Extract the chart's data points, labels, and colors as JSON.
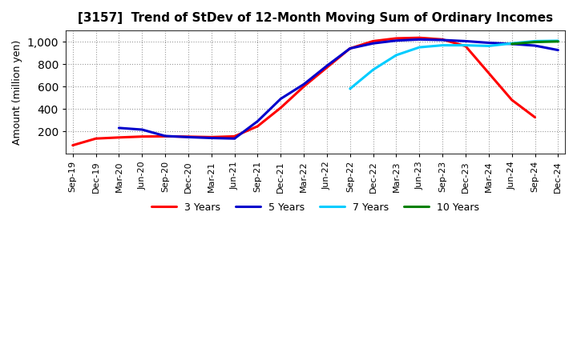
{
  "title": "[3157]  Trend of StDev of 12-Month Moving Sum of Ordinary Incomes",
  "ylabel": "Amount (million yen)",
  "x_labels": [
    "Sep-19",
    "Dec-19",
    "Mar-20",
    "Jun-20",
    "Sep-20",
    "Dec-20",
    "Mar-21",
    "Jun-21",
    "Sep-21",
    "Dec-21",
    "Mar-22",
    "Jun-22",
    "Sep-22",
    "Dec-22",
    "Mar-23",
    "Jun-23",
    "Sep-23",
    "Dec-23",
    "Mar-24",
    "Jun-24",
    "Sep-24",
    "Dec-24"
  ],
  "series": {
    "3 Years": {
      "color": "#FF0000",
      "data": [
        75,
        135,
        145,
        153,
        155,
        152,
        148,
        155,
        245,
        410,
        600,
        770,
        940,
        1005,
        1030,
        1035,
        1020,
        960,
        720,
        480,
        325,
        null
      ]
    },
    "5 Years": {
      "color": "#0000CC",
      "data": [
        null,
        null,
        230,
        215,
        158,
        148,
        140,
        135,
        290,
        490,
        620,
        785,
        940,
        985,
        1010,
        1020,
        1015,
        1005,
        990,
        980,
        965,
        925
      ]
    },
    "7 Years": {
      "color": "#00CCFF",
      "data": [
        null,
        null,
        null,
        null,
        null,
        null,
        null,
        null,
        null,
        null,
        null,
        null,
        null,
        null,
        null,
        null,
        null,
        null,
        null,
        null,
        null,
        null
      ]
    },
    "7 Years_real": {
      "color": "#00CCFF",
      "data": [
        null,
        null,
        null,
        null,
        null,
        null,
        null,
        null,
        null,
        null,
        null,
        null,
        580,
        750,
        880,
        950,
        968,
        968,
        962,
        985,
        1005,
        1008
      ]
    },
    "10 Years": {
      "color": "#008000",
      "data": [
        null,
        null,
        null,
        null,
        null,
        null,
        null,
        null,
        null,
        null,
        null,
        null,
        null,
        null,
        null,
        null,
        null,
        null,
        null,
        980,
        997,
        1002
      ]
    }
  },
  "ylim": [
    0,
    1100
  ],
  "yticks": [
    200,
    400,
    600,
    800,
    1000
  ],
  "background_color": "#FFFFFF",
  "grid_color": "#AAAAAA",
  "title_fontsize": 11,
  "axis_fontsize": 9,
  "tick_fontsize": 8
}
